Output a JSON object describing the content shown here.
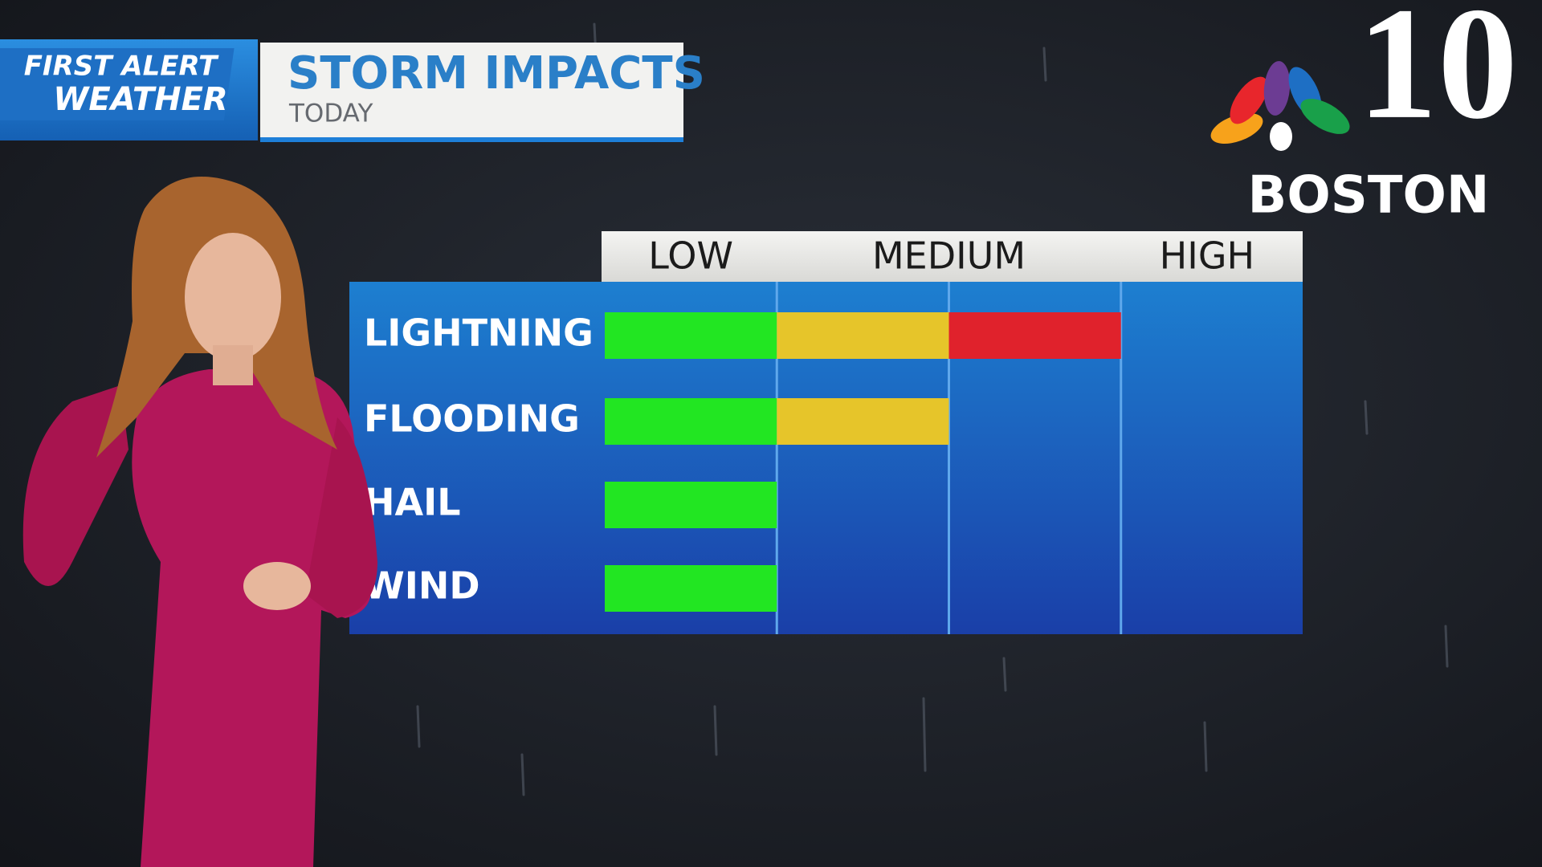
{
  "header": {
    "badge_top": "FIRST ALERT",
    "badge_bottom": "WEATHER",
    "title": "STORM IMPACTS",
    "subtitle": "TODAY"
  },
  "logo": {
    "number": "10",
    "city": "BOSTON"
  },
  "chart_data": {
    "type": "level-bar",
    "categories": [
      "LIGHTNING",
      "FLOODING",
      "HAIL",
      "WIND"
    ],
    "values": [
      3,
      2,
      1,
      1
    ],
    "xlim": [
      0,
      4
    ],
    "xticks": [
      {
        "value": 0.5,
        "label": "LOW"
      },
      {
        "value": 2,
        "label": "MEDIUM"
      },
      {
        "value": 3.5,
        "label": "HIGH"
      }
    ],
    "segment_colors": [
      "#22e622",
      "#e6c52a",
      "#e0222c"
    ],
    "grid": true
  }
}
